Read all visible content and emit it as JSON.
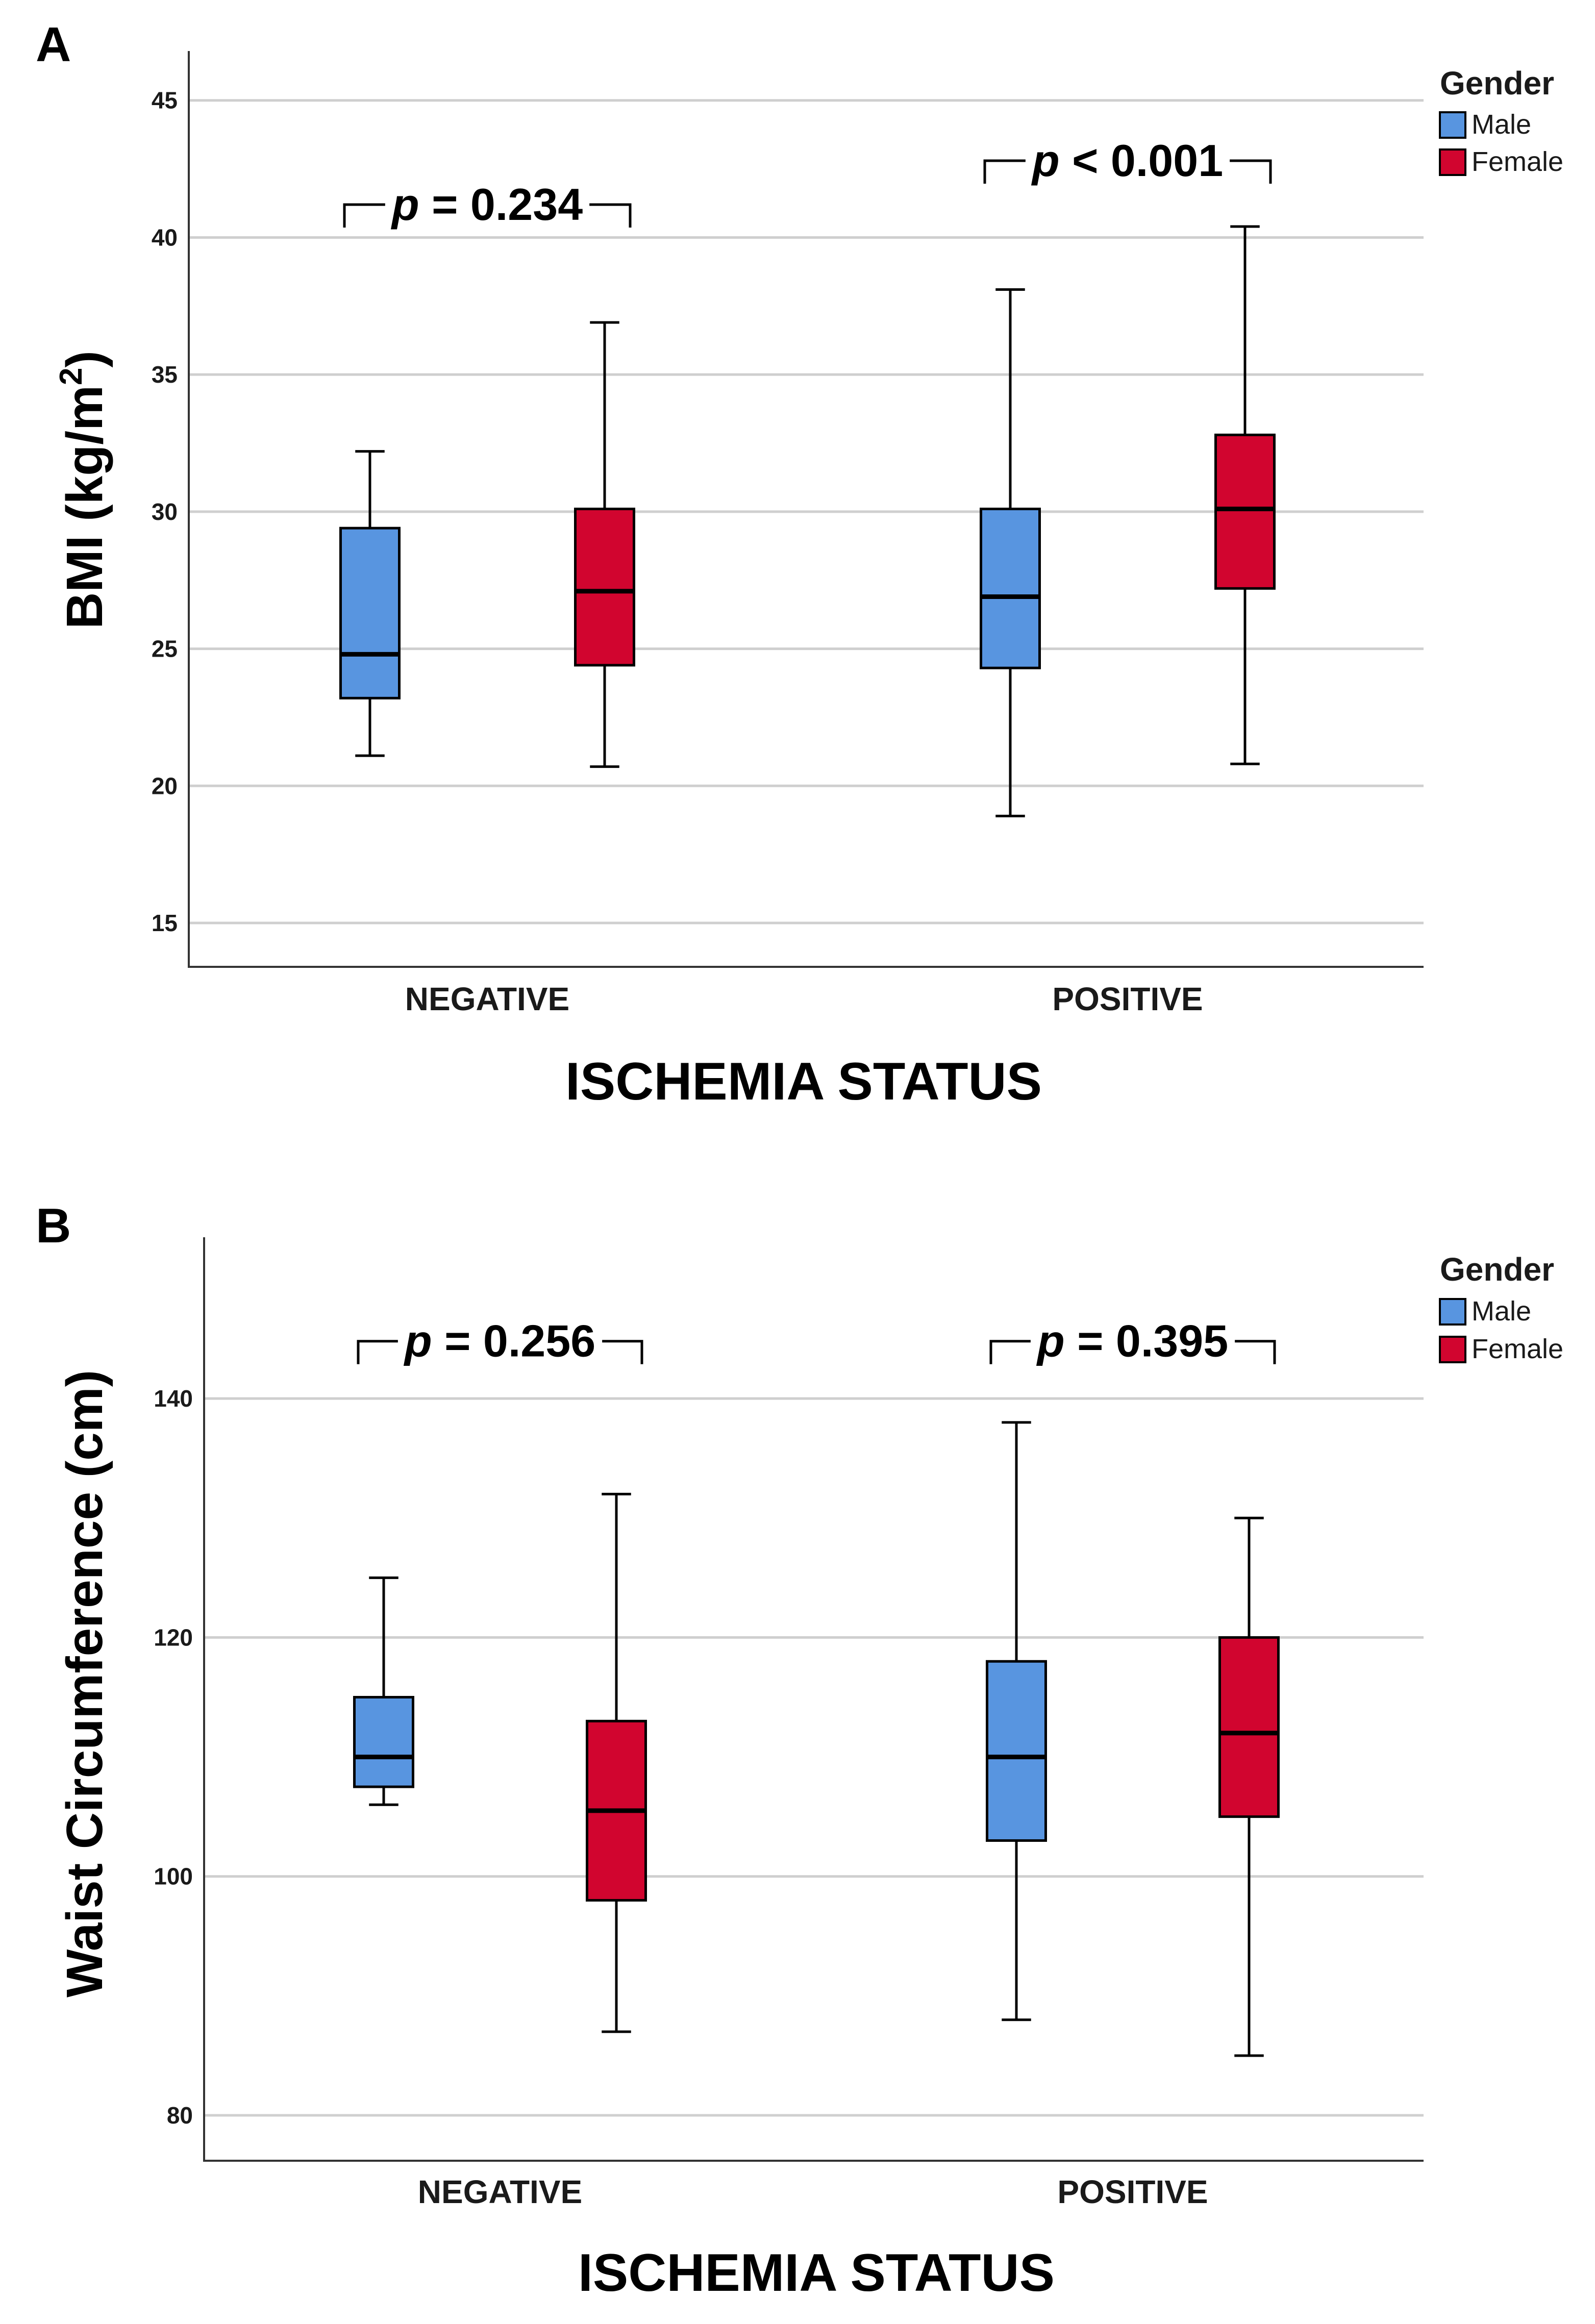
{
  "chart_data": [
    {
      "type": "box",
      "panel_label": "A",
      "title": "",
      "xlabel": "ISCHEMIA STATUS",
      "ylabel_main": "BMI (kg/m",
      "ylabel_sup": "2",
      "ylabel_end": ")",
      "ylim": [
        13.4,
        46.8
      ],
      "yticks": [
        15,
        20,
        25,
        30,
        35,
        40,
        45
      ],
      "ytick_labels": [
        "15",
        "20",
        "25",
        "30",
        "35",
        "40",
        "45"
      ],
      "grid": true,
      "categories": [
        "NEGATIVE",
        "POSITIVE"
      ],
      "legend": {
        "title": "Gender",
        "position": "top-right"
      },
      "series": [
        {
          "name": "Male",
          "color": "#5895E0",
          "boxes": [
            {
              "min": 21.1,
              "q1": 23.2,
              "median": 24.8,
              "q3": 29.4,
              "max": 32.2
            },
            {
              "min": 18.9,
              "q1": 24.3,
              "median": 26.9,
              "q3": 30.1,
              "max": 38.1
            }
          ]
        },
        {
          "name": "Female",
          "color": "#D1052F",
          "boxes": [
            {
              "min": 20.7,
              "q1": 24.4,
              "median": 27.1,
              "q3": 30.1,
              "max": 36.9
            },
            {
              "min": 20.8,
              "q1": 27.2,
              "median": 30.1,
              "q3": 32.8,
              "max": 40.4
            }
          ]
        }
      ],
      "annotations": [
        {
          "prefix": "p",
          "text": " = 0.234",
          "category": "NEGATIVE",
          "level": 41.2
        },
        {
          "prefix": "p",
          "text": " < 0.001",
          "category": "POSITIVE",
          "level": 42.8
        }
      ]
    },
    {
      "type": "box",
      "panel_label": "B",
      "title": "",
      "xlabel": "ISCHEMIA STATUS",
      "ylabel_main": "Waist Circumference (cm)",
      "ylabel_sup": "",
      "ylabel_end": "",
      "ylim": [
        76.2,
        153.5
      ],
      "yticks": [
        80,
        100,
        120,
        140
      ],
      "ytick_labels": [
        "80",
        "100",
        "120",
        "140"
      ],
      "grid": true,
      "categories": [
        "NEGATIVE",
        "POSITIVE"
      ],
      "legend": {
        "title": "Gender",
        "position": "top-right"
      },
      "series": [
        {
          "name": "Male",
          "color": "#5895E0",
          "boxes": [
            {
              "min": 106,
              "q1": 107.5,
              "median": 110,
              "q3": 115,
              "max": 125
            },
            {
              "min": 88,
              "q1": 103,
              "median": 110,
              "q3": 118,
              "max": 138
            }
          ]
        },
        {
          "name": "Female",
          "color": "#D1052F",
          "boxes": [
            {
              "min": 87,
              "q1": 98,
              "median": 105.5,
              "q3": 113,
              "max": 132
            },
            {
              "min": 85,
              "q1": 105,
              "median": 112,
              "q3": 120,
              "max": 130
            }
          ]
        }
      ],
      "annotations": [
        {
          "prefix": "p",
          "text": " = 0.256",
          "category": "NEGATIVE",
          "level": 144.8
        },
        {
          "prefix": "p",
          "text": " = 0.395",
          "category": "POSITIVE",
          "level": 144.8
        }
      ]
    }
  ]
}
